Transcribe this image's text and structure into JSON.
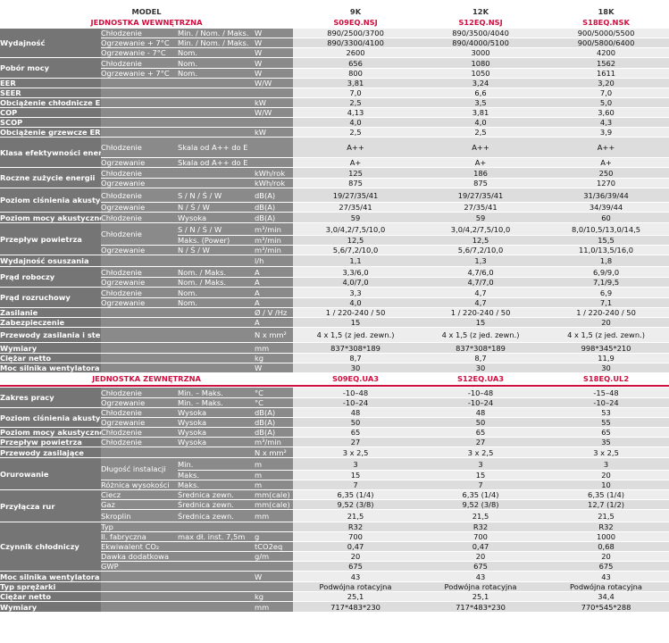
{
  "header": {
    "model_label": "MODEL",
    "capacities": [
      "9K",
      "12K",
      "18K"
    ]
  },
  "section_indoor": {
    "title": "JEDNOSTKA WEWNĘTRZNA",
    "models": [
      "S09EQ.NSJ",
      "S12EQ.NSJ",
      "S18EQ.NSK"
    ],
    "rows": [
      {
        "label": "Wydajność",
        "sub": "Chłodzenie",
        "cond": "Min. / Nom. / Maks.",
        "unit": "W",
        "values": [
          "890/2500/3700",
          "890/3500/4040",
          "900/5000/5500"
        ]
      },
      {
        "label": "",
        "sub": "Ogrzewanie + 7°C",
        "cond": "Min. / Nom. / Maks.",
        "unit": "W",
        "values": [
          "890/3300/4100",
          "890/4000/5100",
          "900/5800/6400"
        ]
      },
      {
        "label": "",
        "sub": "Ogrzewanie - 7°C",
        "cond": "Nom.",
        "unit": "W",
        "values": [
          "2600",
          "3000",
          "4200"
        ]
      },
      {
        "label": "Pobór mocy",
        "sub": "Chłodzenie",
        "cond": "Nom.",
        "unit": "W",
        "values": [
          "656",
          "1080",
          "1562"
        ]
      },
      {
        "label": "",
        "sub": "Ogrzewanie + 7°C",
        "cond": "Nom.",
        "unit": "W",
        "values": [
          "800",
          "1050",
          "1611"
        ]
      },
      {
        "label": "EER",
        "sub": "",
        "cond": "",
        "unit": "W/W",
        "values": [
          "3,81",
          "3,24",
          "3,20"
        ]
      },
      {
        "label": "SEER",
        "sub": "",
        "cond": "",
        "unit": "",
        "values": [
          "7,0",
          "6,6",
          "7,0"
        ]
      },
      {
        "label": "Obciążenie chłodnicze ERP",
        "sub": "",
        "cond": "",
        "unit": "kW",
        "values": [
          "2,5",
          "3,5",
          "5,0"
        ]
      },
      {
        "label": "COP",
        "sub": "",
        "cond": "",
        "unit": "W/W",
        "values": [
          "4,13",
          "3,81",
          "3,60"
        ]
      },
      {
        "label": "SCOP",
        "sub": "",
        "cond": "",
        "unit": "",
        "values": [
          "4,0",
          "4,0",
          "4,3"
        ]
      },
      {
        "label": "Obciążenie grzewcze ERP",
        "sub": "",
        "cond": "",
        "unit": "kW",
        "values": [
          "2,5",
          "2,5",
          "3,9"
        ]
      },
      {
        "label": "Klasa efektywności energetycznej",
        "sub": "Chłodzenie",
        "cond": "Skala od A++ do E",
        "unit": "",
        "values": [
          "A++",
          "A++",
          "A++"
        ]
      },
      {
        "label": "",
        "sub": "Ogrzewanie",
        "cond": "Skala od A++ do E",
        "unit": "",
        "values": [
          "A+",
          "A+",
          "A+"
        ]
      },
      {
        "label": "Roczne zużycie energii",
        "sub": "Chłodzenie",
        "cond": "",
        "unit": "kWh/rok",
        "values": [
          "125",
          "186",
          "250"
        ]
      },
      {
        "label": "",
        "sub": "Ogrzewanie",
        "cond": "",
        "unit": "kWh/rok",
        "values": [
          "875",
          "875",
          "1270"
        ]
      },
      {
        "label": "Poziom ciśnienia akustycznego",
        "sub": "Chłodzenie",
        "cond": "S / N / Ś / W",
        "unit": "dB(A)",
        "values": [
          "19/27/35/41",
          "19/27/35/41",
          "31/36/39/44"
        ]
      },
      {
        "label": "",
        "sub": "Ogrzewanie",
        "cond": "N / Ś / W",
        "unit": "dB(A)",
        "values": [
          "27/35/41",
          "27/35/41",
          "34/39/44"
        ]
      },
      {
        "label": "Poziom mocy akustycznej",
        "sub": "Chłodzenie",
        "cond": "Wysoka",
        "unit": "dB(A)",
        "values": [
          "59",
          "59",
          "60"
        ]
      },
      {
        "label": "Przepływ powietrza",
        "sub": "Chłodzenie",
        "cond": "S / N / Ś / W",
        "unit": "m³/min",
        "values": [
          "3,0/4,2/7,5/10,0",
          "3,0/4,2/7,5/10,0",
          "8,0/10,5/13,0/14,5"
        ]
      },
      {
        "label": "",
        "sub": "",
        "cond": "Maks. (Power)",
        "unit": "m³/min",
        "values": [
          "12,5",
          "12,5",
          "15,5"
        ]
      },
      {
        "label": "",
        "sub": "Ogrzewanie",
        "cond": "N / Ś / W",
        "unit": "m³/min",
        "values": [
          "5,6/7,2/10,0",
          "5,6/7,2/10,0",
          "11,0/13,5/16,0"
        ]
      },
      {
        "label": "Wydajność osuszania",
        "sub": "",
        "cond": "",
        "unit": "l/h",
        "values": [
          "1,1",
          "1,3",
          "1,8"
        ]
      },
      {
        "label": "Prąd roboczy",
        "sub": "Chłodzenie",
        "cond": "Nom. / Maks.",
        "unit": "A",
        "values": [
          "3,3/6,0",
          "4,7/6,0",
          "6,9/9,0"
        ]
      },
      {
        "label": "",
        "sub": "Ogrzewanie",
        "cond": "Nom. / Maks.",
        "unit": "A",
        "values": [
          "4,0/7,0",
          "4,7/7,0",
          "7,1/9,5"
        ]
      },
      {
        "label": "Prąd rozruchowy",
        "sub": "Chłodzenie",
        "cond": "Nom.",
        "unit": "A",
        "values": [
          "3,3",
          "4,7",
          "6,9"
        ]
      },
      {
        "label": "",
        "sub": "Ogrzewanie",
        "cond": "Nom.",
        "unit": "A",
        "values": [
          "4,0",
          "4,7",
          "7,1"
        ]
      },
      {
        "label": "Zasilanie",
        "sub": "",
        "cond": "",
        "unit": "Ø / V /Hz",
        "values": [
          "1 / 220-240 / 50",
          "1 / 220-240 / 50",
          "1 / 220-240 / 50"
        ]
      },
      {
        "label": "Zabezpieczenie",
        "sub": "",
        "cond": "",
        "unit": "A",
        "values": [
          "15",
          "15",
          "20"
        ]
      },
      {
        "label": "Przewody zasilania i sterowania",
        "sub": "",
        "cond": "",
        "unit": "N x mm²",
        "values": [
          "4 x 1,5 (z jed. zewn.)",
          "4 x 1,5 (z jed. zewn.)",
          "4 x 1,5 (z jed. zewn.)"
        ]
      },
      {
        "label": "Wymiary",
        "sub": "",
        "cond": "",
        "unit": "mm",
        "values": [
          "837*308*189",
          "837*308*189",
          "998*345*210"
        ]
      },
      {
        "label": "Ciężar netto",
        "sub": "",
        "cond": "",
        "unit": "kg",
        "values": [
          "8,7",
          "8,7",
          "11,9"
        ]
      },
      {
        "label": "Moc silnika wentylatora",
        "sub": "",
        "cond": "",
        "unit": "W",
        "values": [
          "30",
          "30",
          "30"
        ]
      }
    ]
  },
  "section_outdoor": {
    "title": "JEDNOSTKA ZEWNĘTRZNA",
    "models": [
      "S09EQ.UA3",
      "S12EQ.UA3",
      "S18EQ.UL2"
    ],
    "rows": [
      {
        "label": "Zakres pracy",
        "sub": "Chłodzenie",
        "cond": "Min. – Maks.",
        "unit": "°C",
        "values": [
          "-10–48",
          "-10–48",
          "-15–48"
        ]
      },
      {
        "label": "",
        "sub": "Ogrzewanie",
        "cond": "Min. – Maks.",
        "unit": "°C",
        "values": [
          "-10–24",
          "-10–24",
          "-10–24"
        ]
      },
      {
        "label": "Poziom ciśnienia akustycznego",
        "sub": "Chłodzenie",
        "cond": "Wysoka",
        "unit": "dB(A)",
        "values": [
          "48",
          "48",
          "53"
        ]
      },
      {
        "label": "",
        "sub": "Ogrzewanie",
        "cond": "Wysoka",
        "unit": "dB(A)",
        "values": [
          "50",
          "50",
          "55"
        ]
      },
      {
        "label": "Poziom mocy akustycznej",
        "sub": "Chłodzenie",
        "cond": "Wysoka",
        "unit": "dB(A)",
        "values": [
          "65",
          "65",
          "65"
        ]
      },
      {
        "label": "Przepływ powietrza",
        "sub": "Chłodzenie",
        "cond": "Wysoka",
        "unit": "m³/min",
        "values": [
          "27",
          "27",
          "35"
        ]
      },
      {
        "label": "Przewody zasilające",
        "sub": "",
        "cond": "",
        "unit": "N x mm²",
        "values": [
          "3 x 2,5",
          "3 x 2,5",
          "3 x 2,5"
        ]
      },
      {
        "label": "Orurowanie",
        "sub": "Długość instalacji",
        "cond": "Min.",
        "unit": "m",
        "values": [
          "3",
          "3",
          "3"
        ]
      },
      {
        "label": "",
        "sub": "",
        "cond": "Maks.",
        "unit": "m",
        "values": [
          "15",
          "15",
          "20"
        ]
      },
      {
        "label": "",
        "sub": "Różnica wysokości",
        "cond": "Maks.",
        "unit": "m",
        "values": [
          "7",
          "7",
          "10"
        ]
      },
      {
        "label": "Przyłącza rur",
        "sub": "Ciecz",
        "cond": "Średnica zewn.",
        "unit": "mm(cale)",
        "values": [
          "6,35 (1/4)",
          "6,35 (1/4)",
          "6,35 (1/4)"
        ]
      },
      {
        "label": "",
        "sub": "Gaz",
        "cond": "Średnica zewn.",
        "unit": "mm(cale)",
        "values": [
          "9,52 (3/8)",
          "9,52 (3/8)",
          "12,7 (1/2)"
        ]
      },
      {
        "label": "",
        "sub": "Skroplin",
        "cond": "Średnica zewn.",
        "unit": "mm",
        "values": [
          "21,5",
          "21,5",
          "21,5"
        ]
      },
      {
        "label": "Czynnik chłodniczy",
        "sub": "Typ",
        "cond": "",
        "unit": "",
        "values": [
          "R32",
          "R32",
          "R32"
        ]
      },
      {
        "label": "",
        "sub": "Il. fabryczna",
        "cond": "max dł. inst. 7,5m",
        "unit": "g",
        "values": [
          "700",
          "700",
          "1000"
        ]
      },
      {
        "label": "",
        "sub": "Ekwiwalent CO₂",
        "cond": "",
        "unit": "tCO2eq",
        "values": [
          "0,47",
          "0,47",
          "0,68"
        ]
      },
      {
        "label": "",
        "sub": "Dawka dodatkowa",
        "cond": "",
        "unit": "g/m",
        "values": [
          "20",
          "20",
          "20"
        ]
      },
      {
        "label": "",
        "sub": "GWP",
        "cond": "",
        "unit": "",
        "values": [
          "675",
          "675",
          "675"
        ]
      },
      {
        "label": "Moc silnika wentylatora",
        "sub": "",
        "cond": "",
        "unit": "W",
        "values": [
          "43",
          "43",
          "43"
        ]
      },
      {
        "label": "Typ sprężarki",
        "sub": "",
        "cond": "",
        "unit": "",
        "values": [
          "Podwójna rotacyjna",
          "Podwójna rotacyjna",
          "Podwójna rotacyjna"
        ]
      },
      {
        "label": "Ciężar netto",
        "sub": "",
        "cond": "",
        "unit": "kg",
        "values": [
          "25,1",
          "25,1",
          "34,4"
        ]
      },
      {
        "label": "Wymiary",
        "sub": "",
        "cond": "",
        "unit": "mm",
        "values": [
          "717*483*230",
          "717*483*230",
          "770*545*288"
        ]
      }
    ]
  }
}
